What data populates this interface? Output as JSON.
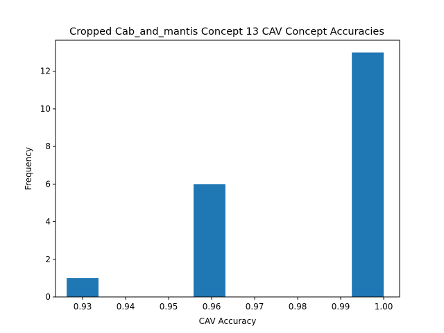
{
  "chart_data": {
    "type": "bar",
    "title": "Cropped Cab_and_mantis Concept 13 CAV Concept Accuracies",
    "xlabel": "CAV Accuracy",
    "ylabel": "Frequency",
    "xlim": [
      0.9237,
      1.0037
    ],
    "ylim": [
      0,
      13.65
    ],
    "xticks": [
      0.93,
      0.94,
      0.95,
      0.96,
      0.97,
      0.98,
      0.99,
      1.0
    ],
    "xtick_labels": [
      "0.93",
      "0.94",
      "0.95",
      "0.96",
      "0.97",
      "0.98",
      "0.99",
      "1.00"
    ],
    "yticks": [
      0,
      2,
      4,
      6,
      8,
      10,
      12
    ],
    "ytick_labels": [
      "0",
      "2",
      "4",
      "6",
      "8",
      "10",
      "12"
    ],
    "bar_color": "#1f77b4",
    "bins": [
      {
        "x0": 0.9263,
        "x1": 0.9337,
        "count": 1
      },
      {
        "x0": 0.9337,
        "x1": 0.941,
        "count": 0
      },
      {
        "x0": 0.941,
        "x1": 0.9484,
        "count": 0
      },
      {
        "x0": 0.9484,
        "x1": 0.9558,
        "count": 0
      },
      {
        "x0": 0.9558,
        "x1": 0.9632,
        "count": 6
      },
      {
        "x0": 0.9632,
        "x1": 0.9705,
        "count": 0
      },
      {
        "x0": 0.9705,
        "x1": 0.9779,
        "count": 0
      },
      {
        "x0": 0.9779,
        "x1": 0.9853,
        "count": 0
      },
      {
        "x0": 0.9853,
        "x1": 0.9926,
        "count": 0
      },
      {
        "x0": 0.9926,
        "x1": 1.0,
        "count": 13
      }
    ],
    "grid": false,
    "legend": "none"
  }
}
